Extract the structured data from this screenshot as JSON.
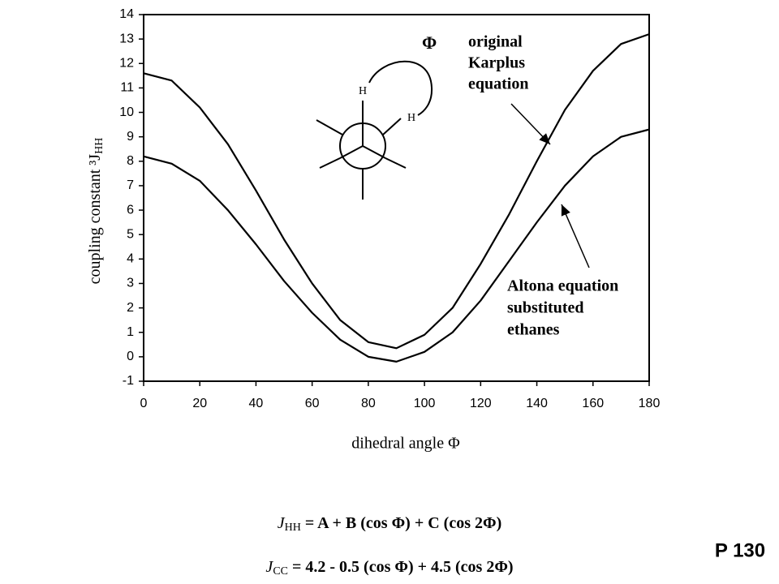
{
  "chart_data": {
    "type": "line",
    "xlabel": "dihedral angle Φ",
    "ylabel": "coupling constant ³J",
    "ylabel_sub": "HH",
    "x": [
      0,
      10,
      20,
      30,
      40,
      50,
      60,
      70,
      80,
      90,
      100,
      110,
      120,
      130,
      140,
      150,
      160,
      170,
      180
    ],
    "series": [
      {
        "color": "#000000",
        "values": [
          11.6,
          11.3,
          10.2,
          8.7,
          6.8,
          4.8,
          3.0,
          1.5,
          0.6,
          0.35,
          0.9,
          2.0,
          3.8,
          5.8,
          8.0,
          10.1,
          11.7,
          12.8,
          13.2
        ]
      },
      {
        "color": "#000000",
        "values": [
          8.2,
          7.9,
          7.2,
          6.0,
          4.6,
          3.1,
          1.8,
          0.7,
          0.0,
          -0.2,
          0.2,
          1.0,
          2.3,
          3.9,
          5.5,
          7.0,
          8.2,
          9.0,
          9.3
        ]
      }
    ],
    "xlim": [
      0,
      180
    ],
    "xticks": [
      0,
      20,
      40,
      60,
      80,
      100,
      120,
      140,
      160,
      180
    ],
    "ylim": [
      -1,
      14
    ],
    "yticks": [
      -1,
      0,
      1,
      2,
      3,
      4,
      5,
      6,
      7,
      8,
      9,
      10,
      11,
      12,
      13,
      14
    ],
    "grid": false,
    "annotations": {
      "phi": "Φ",
      "h_front": "H",
      "h_back": "H",
      "original": [
        "original",
        "Karplus",
        "equation"
      ],
      "altona": [
        "Altona equation",
        "substituted",
        "ethanes"
      ]
    }
  },
  "equations": [
    {
      "lhs": "J",
      "sub": "HH",
      "rhs": " = A + B (cos Φ) + C (cos 2Φ)"
    },
    {
      "lhs": "J",
      "sub": "CC",
      "rhs": " = 4.2 - 0.5 (cos Φ) + 4.5 (cos 2Φ)"
    }
  ],
  "page_label": "P 130"
}
